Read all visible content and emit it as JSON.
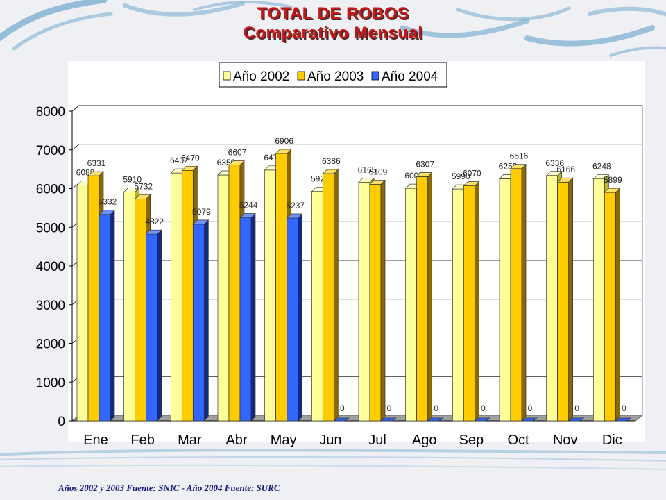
{
  "title": "TOTAL DE ROBOS",
  "subtitle": "Comparativo Mensual",
  "footnote": "Años 2002 y 2003 Fuente: SNIC - Año 2004 Fuente: SURC",
  "chart_data": {
    "type": "bar",
    "categories": [
      "Ene",
      "Feb",
      "Mar",
      "Abr",
      "May",
      "Jun",
      "Jul",
      "Ago",
      "Sep",
      "Oct",
      "Nov",
      "Dic"
    ],
    "series": [
      {
        "name": "Año 2002",
        "color": "#ffff99",
        "side": "#b8b820",
        "top": "#ffffcc",
        "values": [
          6088,
          5910,
          6402,
          6350,
          6479,
          5924,
          6165,
          6007,
          5990,
          6253,
          6336,
          6248
        ]
      },
      {
        "name": "Año 2003",
        "color": "#ffcc00",
        "side": "#8a6a00",
        "top": "#ffe066",
        "values": [
          6331,
          5732,
          6470,
          6607,
          6906,
          6386,
          6109,
          6307,
          6070,
          6516,
          6166,
          5899
        ]
      },
      {
        "name": "Año 2004",
        "color": "#3366ff",
        "side": "#122a80",
        "top": "#6f92ff",
        "values": [
          5332,
          4822,
          5079,
          5244,
          5237,
          0,
          0,
          0,
          0,
          0,
          0,
          0
        ]
      }
    ],
    "data_labels": [
      [
        "6088",
        "5910",
        "6402",
        "6350",
        "6479",
        "5924",
        "6165",
        "6007",
        "5990",
        "6253",
        "6336",
        "6248"
      ],
      [
        "6331",
        "5732",
        "6470",
        "6607",
        "6906",
        "6386",
        "6109",
        "6307",
        "6070",
        "6516",
        "6166",
        "5899"
      ],
      [
        "5332",
        "4822",
        "5079",
        "5244",
        "5237",
        "0",
        "0",
        "0",
        "0",
        "0",
        "0",
        "0"
      ]
    ],
    "ylim": [
      0,
      8000
    ],
    "yticks": [
      0,
      1000,
      2000,
      3000,
      4000,
      5000,
      6000,
      7000,
      8000
    ],
    "grid": true,
    "legend": "top-center"
  }
}
